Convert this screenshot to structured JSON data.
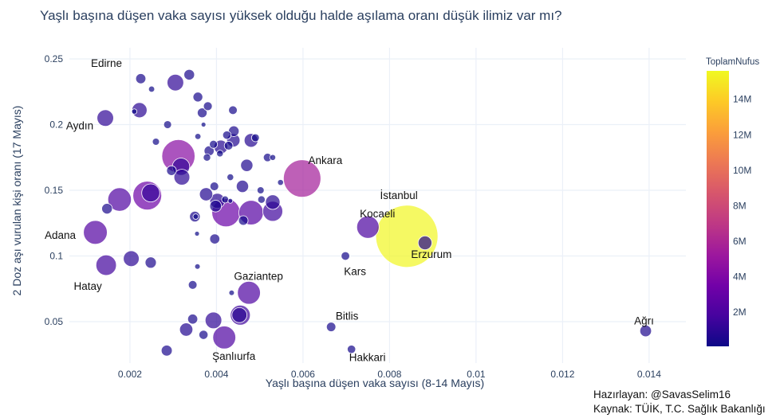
{
  "chart_data": {
    "type": "scatter",
    "title": "Yaşlı başına düşen vaka sayısı yüksek olduğu halde aşılama oranı düşük ilimiz var mı?",
    "xlabel": "Yaşlı başına düşen vaka sayısı (8-14 Mayıs)",
    "ylabel": "2 Doz aşı vurulan kişi oranı (17 Mayıs)",
    "xlim": [
      0.0006,
      0.01485
    ],
    "ylim": [
      0.0185,
      0.2585
    ],
    "xticks": [
      0.002,
      0.004,
      0.006,
      0.008,
      0.01,
      0.012,
      0.014
    ],
    "xtick_labels": [
      "0.002",
      "0.004",
      "0.006",
      "0.008",
      "0.01",
      "0.012",
      "0.014"
    ],
    "yticks": [
      0.05,
      0.1,
      0.15,
      0.2,
      0.25
    ],
    "ytick_labels": [
      "0.05",
      "0.1",
      "0.15",
      "0.2",
      "0.25"
    ],
    "grid": true,
    "size_variable": "ToplamNufus",
    "color_variable": "ToplamNufus",
    "colorbar": {
      "title": "ToplamNufus",
      "ticks": [
        2,
        4,
        6,
        8,
        10,
        12,
        14
      ],
      "tick_labels": [
        "2M",
        "4M",
        "6M",
        "8M",
        "10M",
        "12M",
        "14M"
      ],
      "range": [
        0.08,
        15.6
      ],
      "colorscale": [
        "#0d0887",
        "#46039f",
        "#7201a8",
        "#9c179e",
        "#bd3786",
        "#d8576b",
        "#ed7953",
        "#fb9f3a",
        "#fdca26",
        "#f0f921"
      ]
    },
    "points": [
      {
        "name": "İstanbul",
        "x": 0.0084,
        "y": 0.115,
        "pop": 15.5
      },
      {
        "name": "Ankara",
        "x": 0.00598,
        "y": 0.159,
        "pop": 5.6
      },
      {
        "name": "Adana",
        "x": 0.0012,
        "y": 0.118,
        "pop": 2.26
      },
      {
        "name": "Gaziantep",
        "x": 0.00475,
        "y": 0.072,
        "pop": 2.1
      },
      {
        "name": "Şanlıurfa",
        "x": 0.00418,
        "y": 0.038,
        "pop": 2.1
      },
      {
        "name": "Kocaeli",
        "x": 0.0075,
        "y": 0.122,
        "pop": 2.0
      },
      {
        "name": "Hatay",
        "x": 0.00145,
        "y": 0.093,
        "pop": 1.67
      },
      {
        "name": "Aydın",
        "x": 0.00143,
        "y": 0.205,
        "pop": 1.1
      },
      {
        "name": "Edirne",
        "x": 0.00225,
        "y": 0.235,
        "pop": 0.41
      },
      {
        "name": "Erzurum",
        "x": 0.00882,
        "y": 0.11,
        "pop": 0.76
      },
      {
        "name": "Kars",
        "x": 0.00698,
        "y": 0.1,
        "pop": 0.29
      },
      {
        "name": "Bitlis",
        "x": 0.00665,
        "y": 0.046,
        "pop": 0.35
      },
      {
        "name": "Hakkari",
        "x": 0.00712,
        "y": 0.029,
        "pop": 0.28
      },
      {
        "name": "Ağrı",
        "x": 0.01392,
        "y": 0.043,
        "pop": 0.54
      },
      {
        "name": "",
        "x": 0.00312,
        "y": 0.176,
        "pop": 4.4
      },
      {
        "name": "",
        "x": 0.0024,
        "y": 0.146,
        "pop": 3.3
      },
      {
        "name": "",
        "x": 0.00422,
        "y": 0.133,
        "pop": 3.2
      },
      {
        "name": "",
        "x": 0.0048,
        "y": 0.133,
        "pop": 2.4
      },
      {
        "name": "",
        "x": 0.00176,
        "y": 0.143,
        "pop": 2.2
      },
      {
        "name": "",
        "x": 0.00248,
        "y": 0.148,
        "pop": 1.3
      },
      {
        "name": "",
        "x": 0.0053,
        "y": 0.134,
        "pop": 1.6
      },
      {
        "name": "",
        "x": 0.00455,
        "y": 0.055,
        "pop": 1.6
      },
      {
        "name": "",
        "x": 0.00318,
        "y": 0.168,
        "pop": 1.2
      },
      {
        "name": "",
        "x": 0.00305,
        "y": 0.232,
        "pop": 1.1
      },
      {
        "name": "",
        "x": 0.00203,
        "y": 0.098,
        "pop": 1.0
      },
      {
        "name": "",
        "x": 0.00393,
        "y": 0.051,
        "pop": 1.1
      },
      {
        "name": "",
        "x": 0.00222,
        "y": 0.211,
        "pop": 0.92
      },
      {
        "name": "",
        "x": 0.0032,
        "y": 0.16,
        "pop": 1.0
      },
      {
        "name": "",
        "x": 0.00402,
        "y": 0.142,
        "pop": 0.9
      },
      {
        "name": "",
        "x": 0.0053,
        "y": 0.141,
        "pop": 0.85
      },
      {
        "name": "",
        "x": 0.00453,
        "y": 0.055,
        "pop": 0.9
      },
      {
        "name": "",
        "x": 0.0033,
        "y": 0.044,
        "pop": 0.7
      },
      {
        "name": "",
        "x": 0.0048,
        "y": 0.188,
        "pop": 0.76
      },
      {
        "name": "",
        "x": 0.00376,
        "y": 0.147,
        "pop": 0.7
      },
      {
        "name": "",
        "x": 0.0041,
        "y": 0.183,
        "pop": 0.75
      },
      {
        "name": "",
        "x": 0.00439,
        "y": 0.188,
        "pop": 0.7
      },
      {
        "name": "",
        "x": 0.0046,
        "y": 0.153,
        "pop": 0.6
      },
      {
        "name": "",
        "x": 0.0047,
        "y": 0.169,
        "pop": 0.6
      },
      {
        "name": "",
        "x": 0.00398,
        "y": 0.138,
        "pop": 0.55
      },
      {
        "name": "",
        "x": 0.00248,
        "y": 0.095,
        "pop": 0.5
      },
      {
        "name": "",
        "x": 0.00285,
        "y": 0.028,
        "pop": 0.48
      },
      {
        "name": "",
        "x": 0.00147,
        "y": 0.136,
        "pop": 0.45
      },
      {
        "name": "",
        "x": 0.00337,
        "y": 0.238,
        "pop": 0.45
      },
      {
        "name": "",
        "x": 0.0035,
        "y": 0.13,
        "pop": 0.45
      },
      {
        "name": "",
        "x": 0.0044,
        "y": 0.195,
        "pop": 0.45
      },
      {
        "name": "",
        "x": 0.00367,
        "y": 0.209,
        "pop": 0.38
      },
      {
        "name": "",
        "x": 0.00345,
        "y": 0.052,
        "pop": 0.4
      },
      {
        "name": "",
        "x": 0.00396,
        "y": 0.113,
        "pop": 0.4
      },
      {
        "name": "",
        "x": 0.00383,
        "y": 0.18,
        "pop": 0.4
      },
      {
        "name": "",
        "x": 0.00357,
        "y": 0.221,
        "pop": 0.38
      },
      {
        "name": "",
        "x": 0.00296,
        "y": 0.165,
        "pop": 0.38
      },
      {
        "name": "",
        "x": 0.00462,
        "y": 0.127,
        "pop": 0.36
      },
      {
        "name": "",
        "x": 0.0037,
        "y": 0.04,
        "pop": 0.33
      },
      {
        "name": "",
        "x": 0.0038,
        "y": 0.214,
        "pop": 0.31
      },
      {
        "name": "",
        "x": 0.00438,
        "y": 0.211,
        "pop": 0.3
      },
      {
        "name": "",
        "x": 0.00395,
        "y": 0.153,
        "pop": 0.3
      },
      {
        "name": "",
        "x": 0.00345,
        "y": 0.078,
        "pop": 0.3
      },
      {
        "name": "",
        "x": 0.00518,
        "y": 0.175,
        "pop": 0.28
      },
      {
        "name": "",
        "x": 0.00428,
        "y": 0.184,
        "pop": 0.3
      },
      {
        "name": "",
        "x": 0.00424,
        "y": 0.192,
        "pop": 0.28
      },
      {
        "name": "",
        "x": 0.00393,
        "y": 0.185,
        "pop": 0.26
      },
      {
        "name": "",
        "x": 0.00287,
        "y": 0.2,
        "pop": 0.25
      },
      {
        "name": "",
        "x": 0.00378,
        "y": 0.175,
        "pop": 0.22
      },
      {
        "name": "",
        "x": 0.0049,
        "y": 0.19,
        "pop": 0.25
      },
      {
        "name": "",
        "x": 0.0042,
        "y": 0.143,
        "pop": 0.2
      },
      {
        "name": "",
        "x": 0.0026,
        "y": 0.187,
        "pop": 0.2
      },
      {
        "name": "",
        "x": 0.00502,
        "y": 0.15,
        "pop": 0.2
      },
      {
        "name": "",
        "x": 0.00432,
        "y": 0.16,
        "pop": 0.18
      },
      {
        "name": "",
        "x": 0.00408,
        "y": 0.178,
        "pop": 0.18
      },
      {
        "name": "",
        "x": 0.00504,
        "y": 0.143,
        "pop": 0.22
      },
      {
        "name": "",
        "x": 0.0025,
        "y": 0.227,
        "pop": 0.15
      },
      {
        "name": "",
        "x": 0.00357,
        "y": 0.191,
        "pop": 0.15
      },
      {
        "name": "",
        "x": 0.0053,
        "y": 0.175,
        "pop": 0.14
      },
      {
        "name": "",
        "x": 0.00548,
        "y": 0.156,
        "pop": 0.14
      },
      {
        "name": "",
        "x": 0.00435,
        "y": 0.072,
        "pop": 0.12
      },
      {
        "name": "",
        "x": 0.00356,
        "y": 0.092,
        "pop": 0.12
      },
      {
        "name": "",
        "x": 0.00352,
        "y": 0.13,
        "pop": 0.12
      },
      {
        "name": "",
        "x": 0.0021,
        "y": 0.21,
        "pop": 0.11
      },
      {
        "name": "",
        "x": 0.00355,
        "y": 0.117,
        "pop": 0.08
      },
      {
        "name": "",
        "x": 0.00432,
        "y": 0.142,
        "pop": 0.08
      },
      {
        "name": "",
        "x": 0.0037,
        "y": 0.2,
        "pop": 0.08
      }
    ],
    "annotations": [
      "Edirne",
      "Aydın",
      "Adana",
      "Hatay",
      "Ankara",
      "İstanbul",
      "Kocaeli",
      "Erzurum",
      "Kars",
      "Gaziantep",
      "Bitlis",
      "Hakkari",
      "Şanlıurfa",
      "Ağrı"
    ]
  },
  "credits": {
    "line1": "Hazırlayan: @SavasSelim16",
    "line2": "Kaynak: TÜİK, T.C. Sağlık Bakanlığı"
  }
}
